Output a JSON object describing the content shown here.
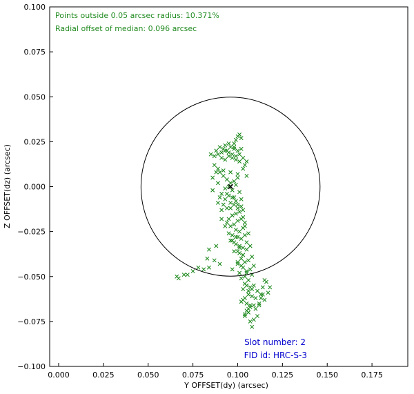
{
  "chart_data": {
    "type": "scatter",
    "title": "",
    "xlabel": "Y OFFSET(dy) (arcsec)",
    "ylabel": "Z OFFSET(dz) (arcsec)",
    "xlim": [
      -0.005,
      0.195
    ],
    "ylim": [
      -0.1,
      0.1
    ],
    "x_ticks": [
      0.0,
      0.025,
      0.05,
      0.075,
      0.1,
      0.125,
      0.15,
      0.175
    ],
    "x_tick_labels": [
      "0.000",
      "0.025",
      "0.050",
      "0.075",
      "0.100",
      "0.125",
      "0.150",
      "0.175"
    ],
    "y_ticks": [
      -0.1,
      -0.075,
      -0.05,
      -0.025,
      0.0,
      0.025,
      0.05,
      0.075,
      0.1
    ],
    "y_tick_labels": [
      "−0.100",
      "−0.075",
      "−0.050",
      "−0.025",
      "0.000",
      "0.025",
      "0.050",
      "0.075",
      "0.100"
    ],
    "grid": false,
    "marker": "x",
    "point_color": "#228B22",
    "median": {
      "x": 0.096,
      "y": 0.0,
      "color": "#000000"
    },
    "circle": {
      "center_x": 0.096,
      "center_y": 0.0,
      "radius": 0.05,
      "color": "#000000"
    },
    "series": [
      {
        "x": [
          0.088,
          0.09,
          0.092,
          0.094,
          0.096,
          0.098,
          0.1,
          0.102,
          0.091,
          0.093,
          0.095,
          0.097,
          0.099,
          0.101,
          0.087,
          0.089,
          0.103,
          0.104,
          0.086,
          0.105,
          0.09,
          0.092,
          0.094,
          0.096,
          0.098,
          0.1,
          0.095,
          0.097,
          0.099,
          0.093,
          0.091,
          0.089,
          0.101,
          0.097,
          0.099,
          0.095,
          0.093,
          0.098,
          0.1,
          0.102,
          0.096,
          0.094,
          0.099,
          0.101,
          0.097,
          0.103,
          0.095,
          0.1,
          0.102,
          0.098,
          0.104,
          0.096,
          0.099,
          0.101,
          0.097,
          0.103,
          0.1,
          0.102,
          0.098,
          0.104,
          0.106,
          0.101,
          0.103,
          0.099,
          0.105,
          0.101,
          0.103,
          0.1,
          0.105,
          0.107,
          0.102,
          0.104,
          0.106,
          0.108,
          0.1,
          0.103,
          0.105,
          0.107,
          0.101,
          0.109,
          0.104,
          0.106,
          0.102,
          0.108,
          0.105,
          0.103,
          0.107,
          0.106,
          0.104,
          0.108,
          0.105,
          0.107,
          0.106,
          0.104,
          0.091,
          0.093,
          0.095,
          0.097,
          0.107,
          0.109,
          0.111,
          0.11,
          0.108,
          0.112,
          0.111,
          0.113,
          0.109,
          0.115,
          0.114,
          0.116,
          0.118,
          0.117,
          0.113,
          0.112,
          0.115,
          0.114,
          0.11,
          0.109,
          0.066,
          0.067,
          0.07,
          0.072,
          0.075,
          0.078,
          0.081,
          0.084,
          0.083,
          0.087,
          0.09,
          0.084,
          0.088,
          0.098,
          0.099,
          0.1,
          0.101,
          0.102,
          0.093,
          0.098,
          0.095,
          0.085,
          0.087,
          0.089,
          0.091,
          0.093,
          0.095,
          0.097,
          0.099,
          0.101,
          0.103,
          0.105,
          0.088,
          0.092,
          0.096,
          0.1,
          0.086,
          0.09,
          0.094,
          0.098,
          0.102,
          0.092,
          0.096,
          0.1,
          0.091,
          0.097,
          0.103,
          0.089,
          0.104,
          0.099,
          0.094,
          0.096,
          0.101,
          0.098,
          0.103,
          0.1,
          0.102,
          0.097,
          0.105,
          0.104,
          0.106,
          0.108,
          0.103,
          0.107,
          0.105,
          0.102,
          0.104,
          0.106
        ],
        "y": [
          0.02,
          0.022,
          0.021,
          0.02,
          0.022,
          0.021,
          0.02,
          0.021,
          0.016,
          0.015,
          0.017,
          0.016,
          0.015,
          0.014,
          0.012,
          0.01,
          0.01,
          0.012,
          0.005,
          0.006,
          0.008,
          0.006,
          0.004,
          0.002,
          0.003,
          0.005,
          0.0,
          -0.002,
          0.001,
          -0.001,
          -0.004,
          0.002,
          -0.003,
          -0.006,
          -0.008,
          -0.005,
          -0.007,
          -0.01,
          -0.012,
          -0.011,
          -0.009,
          -0.012,
          -0.015,
          -0.014,
          -0.016,
          -0.013,
          -0.018,
          -0.019,
          -0.018,
          -0.021,
          -0.02,
          -0.022,
          -0.024,
          -0.025,
          -0.027,
          -0.023,
          -0.028,
          -0.029,
          -0.031,
          -0.027,
          -0.026,
          -0.033,
          -0.034,
          -0.032,
          -0.031,
          -0.037,
          -0.038,
          -0.036,
          -0.035,
          -0.033,
          -0.04,
          -0.042,
          -0.041,
          -0.039,
          -0.043,
          -0.045,
          -0.047,
          -0.046,
          -0.048,
          -0.044,
          -0.05,
          -0.052,
          -0.051,
          -0.049,
          -0.055,
          -0.057,
          -0.056,
          -0.06,
          -0.062,
          -0.061,
          -0.065,
          -0.067,
          -0.07,
          -0.072,
          -0.018,
          -0.022,
          -0.026,
          -0.03,
          -0.075,
          -0.074,
          -0.072,
          -0.068,
          -0.078,
          -0.065,
          -0.058,
          -0.06,
          -0.055,
          -0.052,
          -0.056,
          -0.053,
          -0.056,
          -0.059,
          -0.062,
          -0.066,
          -0.063,
          -0.06,
          -0.062,
          -0.066,
          -0.05,
          -0.051,
          -0.049,
          -0.049,
          -0.047,
          -0.045,
          -0.046,
          -0.045,
          -0.04,
          -0.041,
          -0.043,
          -0.035,
          -0.033,
          0.024,
          0.026,
          0.028,
          0.029,
          0.027,
          0.023,
          0.022,
          0.024,
          0.018,
          0.017,
          0.018,
          0.019,
          0.02,
          0.019,
          0.018,
          0.017,
          0.018,
          0.016,
          0.014,
          0.008,
          0.009,
          0.008,
          0.007,
          -0.002,
          -0.006,
          -0.004,
          -0.006,
          -0.007,
          -0.01,
          -0.012,
          -0.01,
          -0.013,
          -0.016,
          -0.017,
          -0.009,
          -0.022,
          -0.028,
          -0.02,
          -0.03,
          -0.034,
          -0.036,
          -0.038,
          -0.042,
          -0.044,
          -0.046,
          -0.048,
          -0.054,
          -0.058,
          -0.057,
          -0.063,
          -0.066,
          -0.069,
          -0.064,
          -0.071,
          -0.068
        ]
      }
    ]
  },
  "annotations": {
    "line1": "Points outside 0.05 arcsec radius: 10.371%",
    "line2": "Radial offset of median: 0.096 arcsec",
    "slot": "Slot number: 2",
    "fid": "FID id: HRC-S-3",
    "top_color": "#228B22",
    "bottom_color": "#0000CD"
  }
}
